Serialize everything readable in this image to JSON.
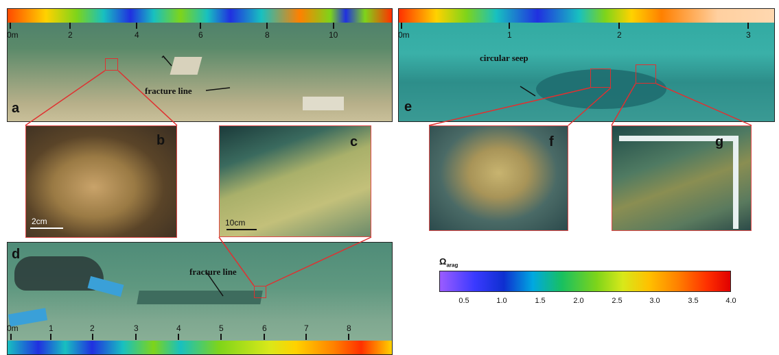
{
  "panels": {
    "a": {
      "letter": "a",
      "annotation": "fracture line",
      "scale_labels": [
        "0m",
        "2",
        "4",
        "6",
        "8",
        "10"
      ]
    },
    "b": {
      "letter": "b",
      "scale_bar": "2cm"
    },
    "c": {
      "letter": "c",
      "scale_bar": "10cm"
    },
    "d": {
      "letter": "d",
      "annotation": "fracture line",
      "scale_labels": [
        "0m",
        "1",
        "2",
        "3",
        "4",
        "5",
        "6",
        "7",
        "8"
      ]
    },
    "e": {
      "letter": "e",
      "annotation": "circular seep",
      "scale_labels": [
        "0m",
        "1",
        "2",
        "3"
      ]
    },
    "f": {
      "letter": "f"
    },
    "g": {
      "letter": "g"
    }
  },
  "colorbar": {
    "title": "Ω",
    "title_sub": "arag",
    "ticks": [
      "0.5",
      "1.0",
      "1.5",
      "2.0",
      "2.5",
      "3.0",
      "3.5",
      "4.0"
    ],
    "range": [
      0.2,
      4.0
    ],
    "colors": [
      "#9b5cff",
      "#0e2fd0",
      "#18c060",
      "#d8e81a",
      "#ff8000",
      "#e00000"
    ]
  }
}
